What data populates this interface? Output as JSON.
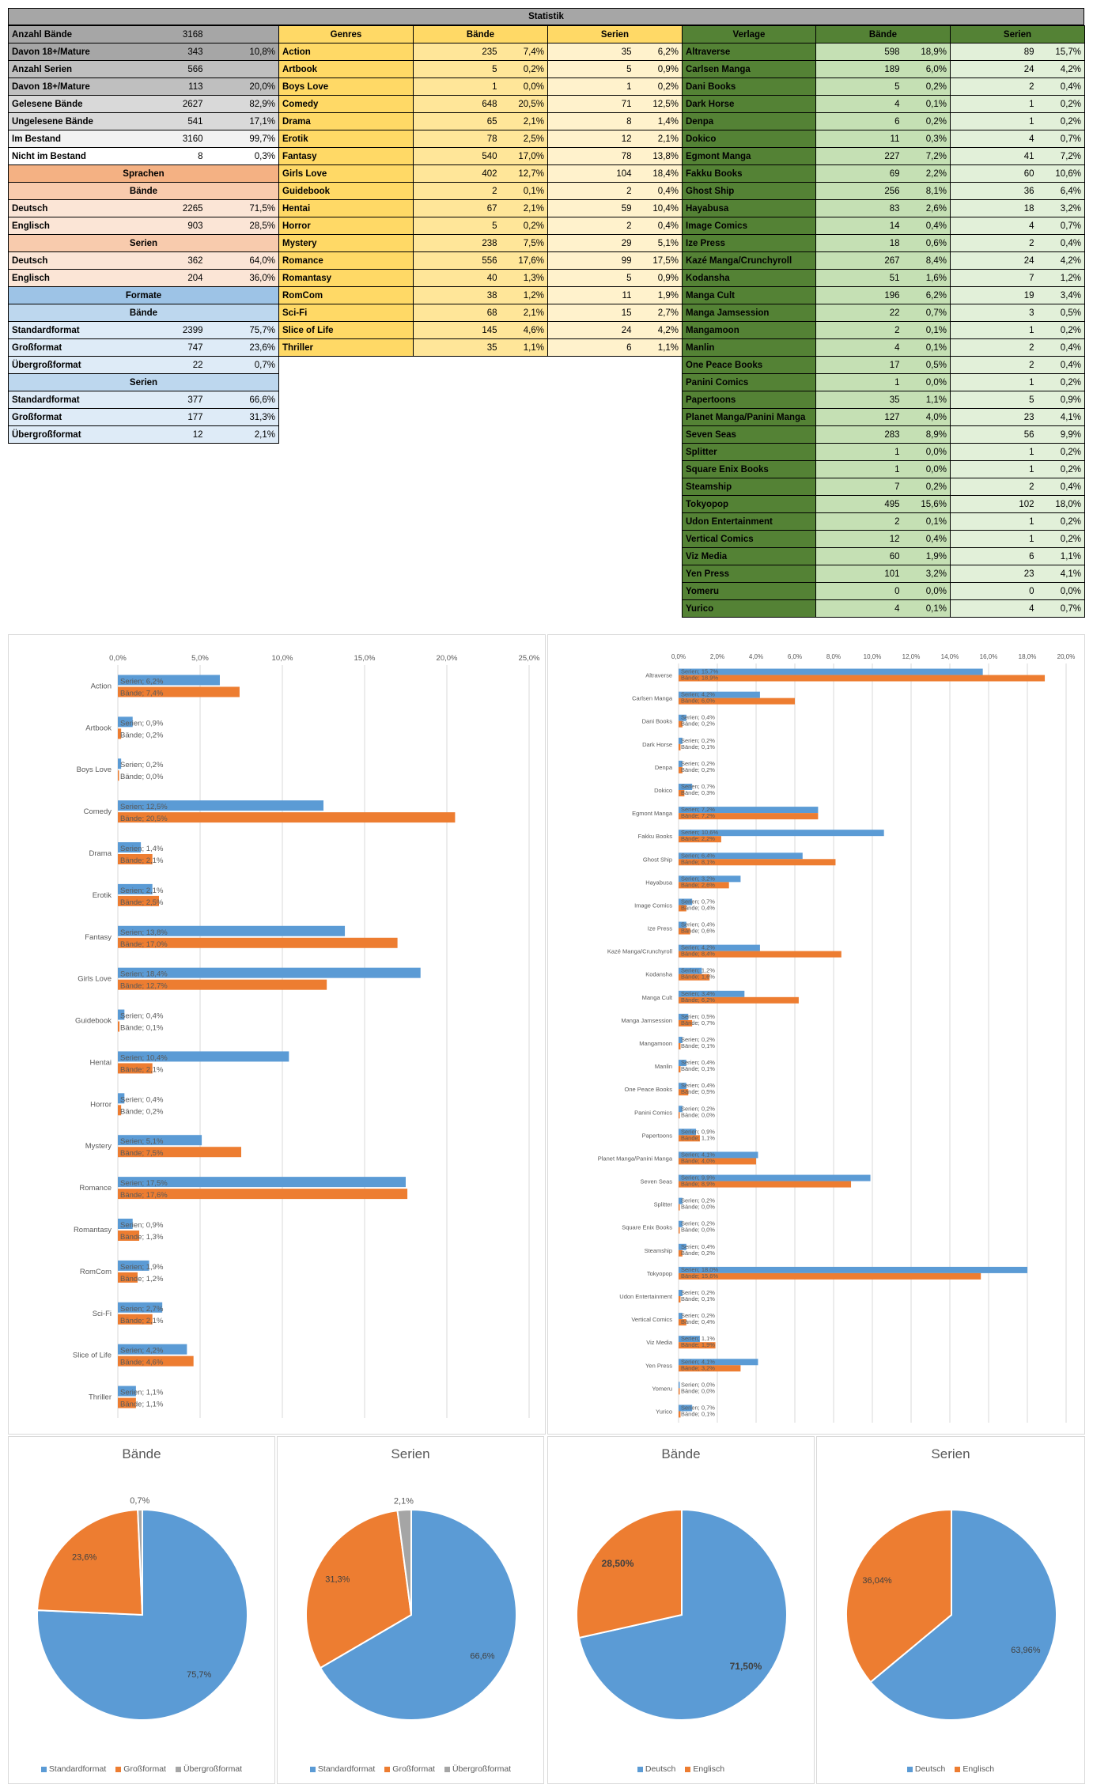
{
  "title": "Statistik",
  "colors": {
    "blue": "#5b9bd5",
    "orange": "#ed7d31",
    "gray": "#a5a5a5",
    "grid": "#d9d9d9",
    "axis": "#595959"
  },
  "overview": [
    {
      "label": "Anzahl Bände",
      "value": "3168",
      "pct": "",
      "bg": "#a6a6a6"
    },
    {
      "label": "Davon 18+/Mature",
      "value": "343",
      "pct": "10,8%",
      "bg": "#a6a6a6"
    },
    {
      "label": "Anzahl Serien",
      "value": "566",
      "pct": "",
      "bg": "#bfbfbf"
    },
    {
      "label": "Davon 18+/Mature",
      "value": "113",
      "pct": "20,0%",
      "bg": "#bfbfbf"
    },
    {
      "label": "Gelesene Bände",
      "value": "2627",
      "pct": "82,9%",
      "bg": "#d9d9d9"
    },
    {
      "label": "Ungelesene Bände",
      "value": "541",
      "pct": "17,1%",
      "bg": "#d9d9d9"
    },
    {
      "label": "Im Bestand",
      "value": "3160",
      "pct": "99,7%",
      "bg": "#f2f2f2"
    },
    {
      "label": "Nicht im Bestand",
      "value": "8",
      "pct": "0,3%",
      "bg": "#ffffff"
    }
  ],
  "sprachen": {
    "title": "Sprachen",
    "baende_label": "Bände",
    "serien_label": "Serien",
    "baende": [
      {
        "label": "Deutsch",
        "value": "2265",
        "pct": "71,5%"
      },
      {
        "label": "Englisch",
        "value": "903",
        "pct": "28,5%"
      }
    ],
    "serien": [
      {
        "label": "Deutsch",
        "value": "362",
        "pct": "64,0%"
      },
      {
        "label": "Englisch",
        "value": "204",
        "pct": "36,0%"
      }
    ]
  },
  "formate": {
    "title": "Formate",
    "baende_label": "Bände",
    "serien_label": "Serien",
    "baende": [
      {
        "label": "Standardformat",
        "value": "2399",
        "pct": "75,7%"
      },
      {
        "label": "Großformat",
        "value": "747",
        "pct": "23,6%"
      },
      {
        "label": "Übergroßformat",
        "value": "22",
        "pct": "0,7%"
      }
    ],
    "serien": [
      {
        "label": "Standardformat",
        "value": "377",
        "pct": "66,6%"
      },
      {
        "label": "Großformat",
        "value": "177",
        "pct": "31,3%"
      },
      {
        "label": "Übergroßformat",
        "value": "12",
        "pct": "2,1%"
      }
    ]
  },
  "genres": {
    "headers": [
      "Genres",
      "Bände",
      "Serien"
    ],
    "rows": [
      {
        "name": "Action",
        "b": "235",
        "bp": "7,4%",
        "s": "35",
        "sp": "6,2%"
      },
      {
        "name": "Artbook",
        "b": "5",
        "bp": "0,2%",
        "s": "5",
        "sp": "0,9%"
      },
      {
        "name": "Boys Love",
        "b": "1",
        "bp": "0,0%",
        "s": "1",
        "sp": "0,2%"
      },
      {
        "name": "Comedy",
        "b": "648",
        "bp": "20,5%",
        "s": "71",
        "sp": "12,5%"
      },
      {
        "name": "Drama",
        "b": "65",
        "bp": "2,1%",
        "s": "8",
        "sp": "1,4%"
      },
      {
        "name": "Erotik",
        "b": "78",
        "bp": "2,5%",
        "s": "12",
        "sp": "2,1%"
      },
      {
        "name": "Fantasy",
        "b": "540",
        "bp": "17,0%",
        "s": "78",
        "sp": "13,8%"
      },
      {
        "name": "Girls Love",
        "b": "402",
        "bp": "12,7%",
        "s": "104",
        "sp": "18,4%"
      },
      {
        "name": "Guidebook",
        "b": "2",
        "bp": "0,1%",
        "s": "2",
        "sp": "0,4%"
      },
      {
        "name": "Hentai",
        "b": "67",
        "bp": "2,1%",
        "s": "59",
        "sp": "10,4%"
      },
      {
        "name": "Horror",
        "b": "5",
        "bp": "0,2%",
        "s": "2",
        "sp": "0,4%"
      },
      {
        "name": "Mystery",
        "b": "238",
        "bp": "7,5%",
        "s": "29",
        "sp": "5,1%"
      },
      {
        "name": "Romance",
        "b": "556",
        "bp": "17,6%",
        "s": "99",
        "sp": "17,5%"
      },
      {
        "name": "Romantasy",
        "b": "40",
        "bp": "1,3%",
        "s": "5",
        "sp": "0,9%"
      },
      {
        "name": "RomCom",
        "b": "38",
        "bp": "1,2%",
        "s": "11",
        "sp": "1,9%"
      },
      {
        "name": "Sci-Fi",
        "b": "68",
        "bp": "2,1%",
        "s": "15",
        "sp": "2,7%"
      },
      {
        "name": "Slice of Life",
        "b": "145",
        "bp": "4,6%",
        "s": "24",
        "sp": "4,2%"
      },
      {
        "name": "Thriller",
        "b": "35",
        "bp": "1,1%",
        "s": "6",
        "sp": "1,1%"
      }
    ]
  },
  "verlage": {
    "headers": [
      "Verlage",
      "Bände",
      "Serien"
    ],
    "rows": [
      {
        "name": "Altraverse",
        "b": "598",
        "bp": "18,9%",
        "s": "89",
        "sp": "15,7%"
      },
      {
        "name": "Carlsen Manga",
        "b": "189",
        "bp": "6,0%",
        "s": "24",
        "sp": "4,2%"
      },
      {
        "name": "Dani Books",
        "b": "5",
        "bp": "0,2%",
        "s": "2",
        "sp": "0,4%"
      },
      {
        "name": "Dark Horse",
        "b": "4",
        "bp": "0,1%",
        "s": "1",
        "sp": "0,2%"
      },
      {
        "name": "Denpa",
        "b": "6",
        "bp": "0,2%",
        "s": "1",
        "sp": "0,2%"
      },
      {
        "name": "Dokico",
        "b": "11",
        "bp": "0,3%",
        "s": "4",
        "sp": "0,7%"
      },
      {
        "name": "Egmont Manga",
        "b": "227",
        "bp": "7,2%",
        "s": "41",
        "sp": "7,2%"
      },
      {
        "name": "Fakku Books",
        "b": "69",
        "bp": "2,2%",
        "s": "60",
        "sp": "10,6%"
      },
      {
        "name": "Ghost Ship",
        "b": "256",
        "bp": "8,1%",
        "s": "36",
        "sp": "6,4%"
      },
      {
        "name": "Hayabusa",
        "b": "83",
        "bp": "2,6%",
        "s": "18",
        "sp": "3,2%"
      },
      {
        "name": "Image Comics",
        "b": "14",
        "bp": "0,4%",
        "s": "4",
        "sp": "0,7%"
      },
      {
        "name": "Ize Press",
        "b": "18",
        "bp": "0,6%",
        "s": "2",
        "sp": "0,4%"
      },
      {
        "name": "Kazé Manga/Crunchyroll",
        "b": "267",
        "bp": "8,4%",
        "s": "24",
        "sp": "4,2%"
      },
      {
        "name": "Kodansha",
        "b": "51",
        "bp": "1,6%",
        "s": "7",
        "sp": "1,2%"
      },
      {
        "name": "Manga Cult",
        "b": "196",
        "bp": "6,2%",
        "s": "19",
        "sp": "3,4%"
      },
      {
        "name": "Manga Jamsession",
        "b": "22",
        "bp": "0,7%",
        "s": "3",
        "sp": "0,5%"
      },
      {
        "name": "Mangamoon",
        "b": "2",
        "bp": "0,1%",
        "s": "1",
        "sp": "0,2%"
      },
      {
        "name": "Manlin",
        "b": "4",
        "bp": "0,1%",
        "s": "2",
        "sp": "0,4%"
      },
      {
        "name": "One Peace Books",
        "b": "17",
        "bp": "0,5%",
        "s": "2",
        "sp": "0,4%"
      },
      {
        "name": "Panini Comics",
        "b": "1",
        "bp": "0,0%",
        "s": "1",
        "sp": "0,2%"
      },
      {
        "name": "Papertoons",
        "b": "35",
        "bp": "1,1%",
        "s": "5",
        "sp": "0,9%"
      },
      {
        "name": "Planet Manga/Panini Manga",
        "b": "127",
        "bp": "4,0%",
        "s": "23",
        "sp": "4,1%"
      },
      {
        "name": "Seven Seas",
        "b": "283",
        "bp": "8,9%",
        "s": "56",
        "sp": "9,9%"
      },
      {
        "name": "Splitter",
        "b": "1",
        "bp": "0,0%",
        "s": "1",
        "sp": "0,2%"
      },
      {
        "name": "Square Enix Books",
        "b": "1",
        "bp": "0,0%",
        "s": "1",
        "sp": "0,2%"
      },
      {
        "name": "Steamship",
        "b": "7",
        "bp": "0,2%",
        "s": "2",
        "sp": "0,4%"
      },
      {
        "name": "Tokyopop",
        "b": "495",
        "bp": "15,6%",
        "s": "102",
        "sp": "18,0%"
      },
      {
        "name": "Udon Entertainment",
        "b": "2",
        "bp": "0,1%",
        "s": "1",
        "sp": "0,2%"
      },
      {
        "name": "Vertical Comics",
        "b": "12",
        "bp": "0,4%",
        "s": "1",
        "sp": "0,2%"
      },
      {
        "name": "Viz Media",
        "b": "60",
        "bp": "1,9%",
        "s": "6",
        "sp": "1,1%"
      },
      {
        "name": "Yen Press",
        "b": "101",
        "bp": "3,2%",
        "s": "23",
        "sp": "4,1%"
      },
      {
        "name": "Yomeru",
        "b": "0",
        "bp": "0,0%",
        "s": "0",
        "sp": "0,0%"
      },
      {
        "name": "Yurico",
        "b": "4",
        "bp": "0,1%",
        "s": "4",
        "sp": "0,7%"
      }
    ]
  },
  "chart_data": [
    {
      "type": "bar",
      "orientation": "horizontal",
      "title": "",
      "xlim": [
        0,
        25
      ],
      "ticks": [
        "0,0%",
        "5,0%",
        "10,0%",
        "15,0%",
        "20,0%",
        "25,0%"
      ],
      "series": [
        {
          "name": "Serien",
          "color": "#5b9bd5"
        },
        {
          "name": "Bände",
          "color": "#ed7d31"
        }
      ],
      "source": "genres",
      "grid": true
    },
    {
      "type": "bar",
      "orientation": "horizontal",
      "title": "",
      "xlim": [
        0,
        20
      ],
      "ticks": [
        "0,0%",
        "2,0%",
        "4,0%",
        "6,0%",
        "8,0%",
        "10,0%",
        "12,0%",
        "14,0%",
        "16,0%",
        "18,0%",
        "20,0%"
      ],
      "series": [
        {
          "name": "Serien",
          "color": "#5b9bd5"
        },
        {
          "name": "Bände",
          "color": "#ed7d31"
        }
      ],
      "source": "verlage",
      "grid": true
    },
    {
      "type": "pie",
      "title": "Bände",
      "labels": [
        "Standardformat",
        "Großformat",
        "Übergroßformat"
      ],
      "values": [
        75.7,
        23.6,
        0.7
      ],
      "display": [
        "75,7%",
        "23,6%",
        "0,7%"
      ],
      "colors": [
        "#5b9bd5",
        "#ed7d31",
        "#a5a5a5"
      ],
      "legend": "bottom"
    },
    {
      "type": "pie",
      "title": "Serien",
      "labels": [
        "Standardformat",
        "Großformat",
        "Übergroßformat"
      ],
      "values": [
        66.6,
        31.3,
        2.1
      ],
      "display": [
        "66,6%",
        "31,3%",
        "2,1%"
      ],
      "colors": [
        "#5b9bd5",
        "#ed7d31",
        "#a5a5a5"
      ],
      "legend": "bottom"
    },
    {
      "type": "pie",
      "title": "Bände",
      "labels": [
        "Deutsch",
        "Englisch"
      ],
      "values": [
        71.5,
        28.5
      ],
      "display": [
        "71,50%",
        "28,50%"
      ],
      "colors": [
        "#5b9bd5",
        "#ed7d31"
      ],
      "legend": "bottom",
      "bold_labels": true
    },
    {
      "type": "pie",
      "title": "Serien",
      "labels": [
        "Deutsch",
        "Englisch"
      ],
      "values": [
        63.96,
        36.04
      ],
      "display": [
        "63,96%",
        "36,04%"
      ],
      "colors": [
        "#5b9bd5",
        "#ed7d31"
      ],
      "legend": "bottom"
    }
  ]
}
